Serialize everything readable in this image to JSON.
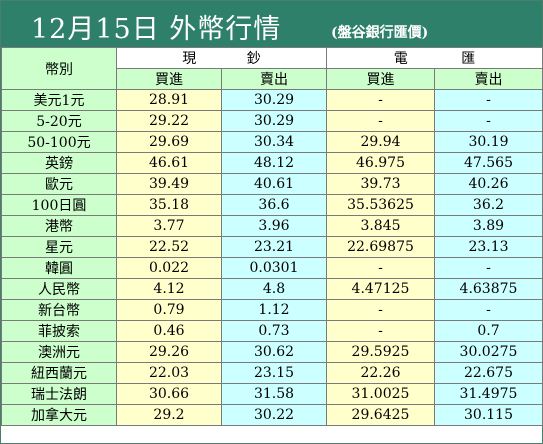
{
  "title": {
    "main": "12月15日 外幣行情",
    "source": "(盤谷銀行匯價)"
  },
  "headers": {
    "currency": "幣別",
    "cash": [
      "現",
      "鈔"
    ],
    "transfer": [
      "電",
      "匯"
    ],
    "buy": "買進",
    "sell": "賣出"
  },
  "rows": [
    {
      "currency": "美元1元",
      "cash_buy": "28.91",
      "cash_sell": "30.29",
      "tt_buy": "-",
      "tt_sell": "-"
    },
    {
      "currency": "5-20元",
      "cash_buy": "29.22",
      "cash_sell": "30.29",
      "tt_buy": "-",
      "tt_sell": "-"
    },
    {
      "currency": "50-100元",
      "cash_buy": "29.69",
      "cash_sell": "30.34",
      "tt_buy": "29.94",
      "tt_sell": "30.19"
    },
    {
      "currency": "英鎊",
      "cash_buy": "46.61",
      "cash_sell": "48.12",
      "tt_buy": "46.975",
      "tt_sell": "47.565"
    },
    {
      "currency": "歐元",
      "cash_buy": "39.49",
      "cash_sell": "40.61",
      "tt_buy": "39.73",
      "tt_sell": "40.26"
    },
    {
      "currency": "100日圓",
      "cash_buy": "35.18",
      "cash_sell": "36.6",
      "tt_buy": "35.53625",
      "tt_sell": "36.2"
    },
    {
      "currency": "港幣",
      "cash_buy": "3.77",
      "cash_sell": "3.96",
      "tt_buy": "3.845",
      "tt_sell": "3.89"
    },
    {
      "currency": "星元",
      "cash_buy": "22.52",
      "cash_sell": "23.21",
      "tt_buy": "22.69875",
      "tt_sell": "23.13"
    },
    {
      "currency": "韓圓",
      "cash_buy": "0.022",
      "cash_sell": "0.0301",
      "tt_buy": "-",
      "tt_sell": "-"
    },
    {
      "currency": "人民幣",
      "cash_buy": "4.12",
      "cash_sell": "4.8",
      "tt_buy": "4.47125",
      "tt_sell": "4.63875"
    },
    {
      "currency": "新台幣",
      "cash_buy": "0.79",
      "cash_sell": "1.12",
      "tt_buy": "-",
      "tt_sell": "-"
    },
    {
      "currency": "菲披索",
      "cash_buy": "0.46",
      "cash_sell": "0.73",
      "tt_buy": "-",
      "tt_sell": "0.7"
    },
    {
      "currency": "澳洲元",
      "cash_buy": "29.26",
      "cash_sell": "30.62",
      "tt_buy": "29.5925",
      "tt_sell": "30.0275"
    },
    {
      "currency": "紐西蘭元",
      "cash_buy": "22.03",
      "cash_sell": "23.15",
      "tt_buy": "22.26",
      "tt_sell": "22.675"
    },
    {
      "currency": "瑞士法朗",
      "cash_buy": "30.66",
      "cash_sell": "31.58",
      "tt_buy": "31.0025",
      "tt_sell": "31.4975"
    },
    {
      "currency": "加拿大元",
      "cash_buy": "29.2",
      "cash_sell": "30.22",
      "tt_buy": "29.6425",
      "tt_sell": "30.115"
    }
  ]
}
